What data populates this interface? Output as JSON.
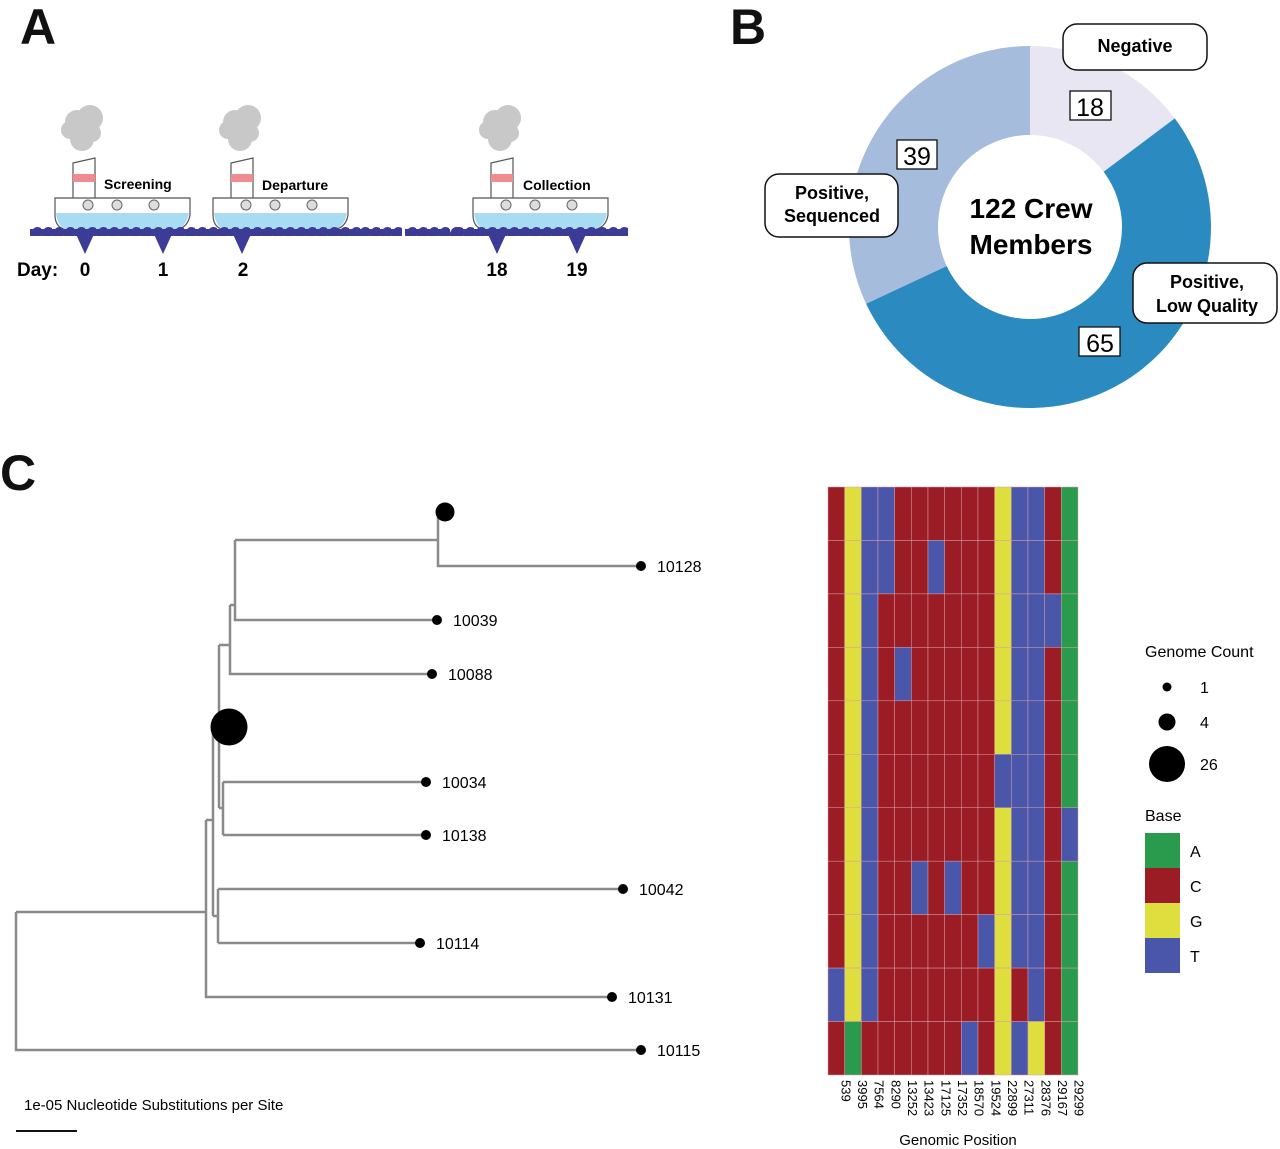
{
  "panels": {
    "a": "A",
    "b": "B",
    "c": "C"
  },
  "timeline": {
    "day_label": "Day:",
    "days": [
      "0",
      "1",
      "2",
      "18",
      "19"
    ],
    "events": [
      "Screening",
      "Departure",
      "Collection"
    ]
  },
  "chart_data": [
    {
      "type": "pie",
      "variant": "donut",
      "center_label": [
        "122 Crew",
        "Members"
      ],
      "slices": [
        {
          "name": "Negative",
          "value": 18,
          "color": "#e8e6f2"
        },
        {
          "name": "Positive, Low Quality",
          "value": 65,
          "color": "#2b8bc0"
        },
        {
          "name": "Positive, Sequenced",
          "value": 39,
          "color": "#a6bcdc"
        }
      ],
      "callouts": {
        "negative": "Negative",
        "sequenced": [
          "Positive,",
          "Sequenced"
        ],
        "low_quality": [
          "Positive,",
          "Low Quality"
        ]
      }
    },
    {
      "type": "heatmap",
      "xlabel": "Genomic Position",
      "columns": [
        "539",
        "3995",
        "7564",
        "8290",
        "13252",
        "13423",
        "17125",
        "17352",
        "18570",
        "19524",
        "22899",
        "27311",
        "28376",
        "29167",
        "29299"
      ],
      "rows": [
        "CGTTCCCCCCGTTCA",
        "CGTTCCTCCCGTTCA",
        "CGTCCCCCCCGTTTA",
        "CGTCTCCCCCGTTCA",
        "CGTCCCCCCCGTTCA",
        "CGTCCCCCCCTTTCA",
        "CGTCCCCCCCGTTCT",
        "CGTCCTCTCCGTTCA",
        "CGTCCCCCCTGTTCA",
        "TGTCCCCCCCGCTCA",
        "CACCCCCCTCGTGCA"
      ],
      "colors": {
        "A": "#2a9a4c",
        "C": "#9b1c24",
        "G": "#dede3e",
        "T": "#4a56aa"
      }
    }
  ],
  "tree": {
    "tips": [
      "10128",
      "10039",
      "10088",
      "10034",
      "10138",
      "10042",
      "10114",
      "10131",
      "10115"
    ],
    "scale_label": "1e-05 Nucleotide Substitutions per Site"
  },
  "legend": {
    "count_title": "Genome Count",
    "counts": [
      "1",
      "4",
      "26"
    ],
    "base_title": "Base",
    "bases": [
      "A",
      "C",
      "G",
      "T"
    ]
  }
}
